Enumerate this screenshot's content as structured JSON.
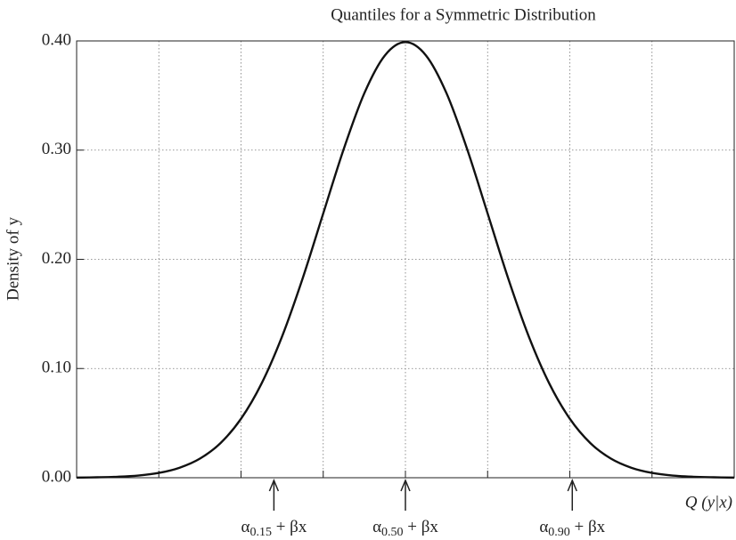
{
  "chart_data": {
    "type": "line",
    "title": "Quantiles for a Symmetric Distribution",
    "y_label": "Density of y",
    "x_label": "Q (y|x)",
    "x": [
      -4,
      -3.75,
      -3.5,
      -3.25,
      -3,
      -2.75,
      -2.5,
      -2.25,
      -2,
      -1.75,
      -1.5,
      -1.25,
      -1,
      -0.75,
      -0.5,
      -0.25,
      0,
      0.25,
      0.5,
      0.75,
      1,
      1.25,
      1.5,
      1.75,
      2,
      2.25,
      2.5,
      2.75,
      3,
      3.25,
      3.5,
      3.75,
      4
    ],
    "series": [
      {
        "color": "#111111",
        "values": [
          0.0001,
          0.0004,
          0.0009,
          0.002,
          0.0044,
          0.0091,
          0.0175,
          0.0317,
          0.054,
          0.0863,
          0.1295,
          0.1826,
          0.242,
          0.3011,
          0.3521,
          0.3867,
          0.3989,
          0.3867,
          0.3521,
          0.3011,
          0.242,
          0.1826,
          0.1295,
          0.0863,
          0.054,
          0.0317,
          0.0175,
          0.0091,
          0.0044,
          0.002,
          0.0009,
          0.0004,
          0.0001
        ]
      }
    ],
    "xlim": [
      -4,
      4
    ],
    "ylim": [
      0,
      0.4
    ],
    "xticks": [
      -4,
      -3,
      -2,
      -1,
      0,
      1,
      2,
      3,
      4
    ],
    "yticks": [
      {
        "value": 0,
        "label": "0.00"
      },
      {
        "value": 0.1,
        "label": "0.10"
      },
      {
        "value": 0.2,
        "label": "0.20"
      },
      {
        "value": 0.3,
        "label": "0.30"
      },
      {
        "value": 0.4,
        "label": "0.40"
      }
    ],
    "grid": true,
    "annotations": [
      {
        "x": -1.6,
        "symbol": "α",
        "subscript": "0.15",
        "rest": " + βx"
      },
      {
        "x": 0,
        "symbol": "α",
        "subscript": "0.50",
        "rest": " + βx"
      },
      {
        "x": 2.03,
        "symbol": "α",
        "subscript": "0.90",
        "rest": " + βx"
      }
    ]
  }
}
